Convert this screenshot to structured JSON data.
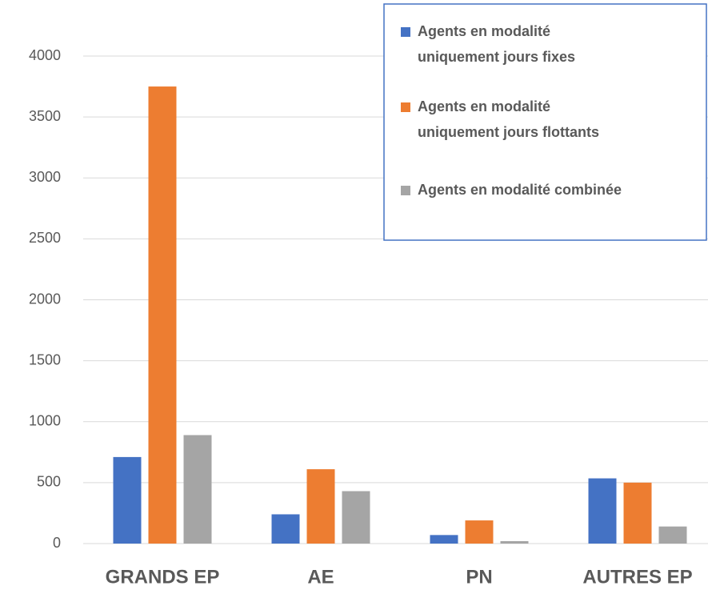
{
  "chart_data": {
    "type": "bar",
    "categories": [
      "GRANDS EP",
      "AE",
      "PN",
      "AUTRES EP"
    ],
    "series": [
      {
        "name": "Agents en modalité uniquement jours fixes",
        "color": "#4472c4",
        "values": [
          710,
          240,
          70,
          535
        ]
      },
      {
        "name": "Agents en modalité uniquement jours flottants",
        "color": "#ed7d31",
        "values": [
          3750,
          610,
          190,
          500
        ]
      },
      {
        "name": "Agents en modalité combinée",
        "color": "#a5a5a5",
        "values": [
          890,
          430,
          20,
          140
        ]
      }
    ],
    "ylim": [
      0,
      4000
    ],
    "yticks": [
      0,
      500,
      1000,
      1500,
      2000,
      2500,
      3000,
      3500,
      4000
    ],
    "grid": true
  }
}
